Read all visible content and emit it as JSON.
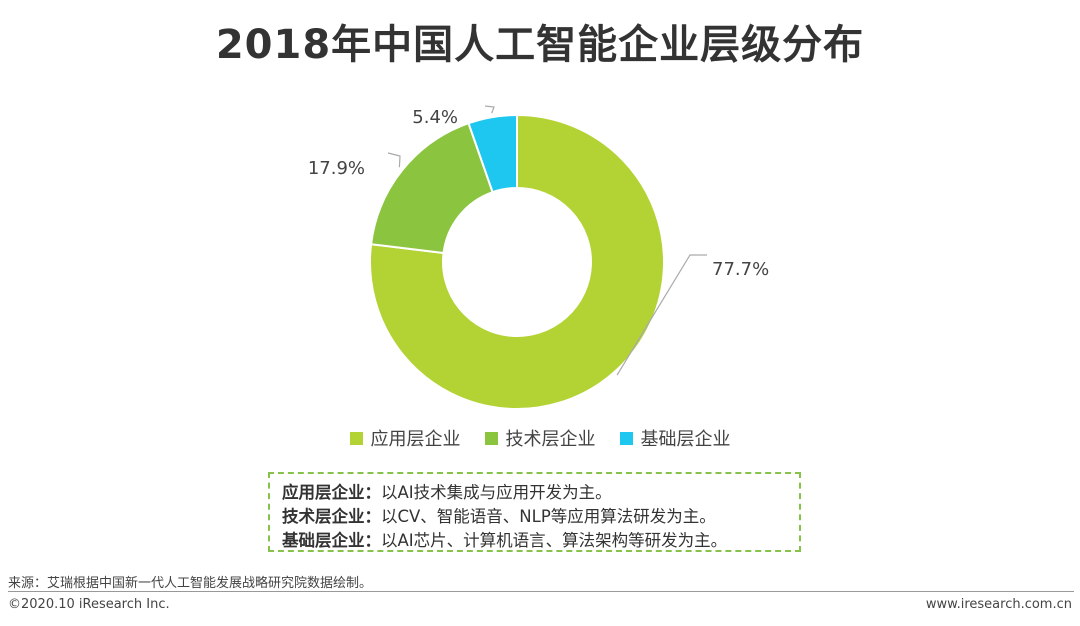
{
  "title": "2018年中国人工智能企业层级分布",
  "chart_data": {
    "type": "pie",
    "title": "2018年中国人工智能企业层级分布",
    "donut": true,
    "categories": [
      "应用层企业",
      "技术层企业",
      "基础层企业"
    ],
    "values": [
      77.7,
      17.9,
      5.4
    ],
    "labels": [
      "77.7%",
      "17.9%",
      "5.4%"
    ],
    "colors": [
      "#b3d234",
      "#8bc53f",
      "#1ec7f0"
    ],
    "legend_position": "bottom"
  },
  "note": {
    "rows": [
      {
        "term": "应用层企业",
        "sep": "：",
        "desc": "以AI技术集成与应用开发为主。"
      },
      {
        "term": "技术层企业",
        "sep": "：",
        "desc": "以CV、智能语音、NLP等应用算法研发为主。"
      },
      {
        "term": "基础层企业",
        "sep": "：",
        "desc": "以AI芯片、计算机语言、算法架构等研发为主。"
      }
    ]
  },
  "source": "来源：艾瑞根据中国新一代人工智能发展战略研究院数据绘制。",
  "footer": {
    "copyright": "©2020.10 iResearch Inc.",
    "website": "www.iresearch.com.cn"
  }
}
